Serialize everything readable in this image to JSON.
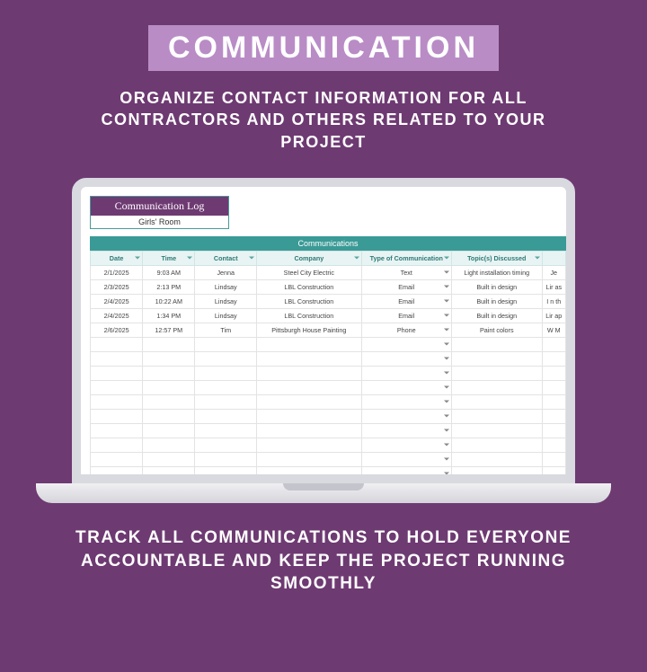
{
  "colors": {
    "page_bg": "#6e3a72",
    "title_bg": "#b98cc6",
    "title_fg": "#ffffff",
    "accent_teal": "#3a9a96",
    "header_cell_bg": "#e8f4f3",
    "header_cell_fg": "#2c7a77",
    "grid_border": "#e3e3e3",
    "log_title_bg": "#6e3a72"
  },
  "hero": {
    "title": "COMMUNICATION",
    "subtitle": "ORGANIZE CONTACT INFORMATION FOR ALL CONTRACTORS AND OTHERS RELATED TO YOUR PROJECT"
  },
  "footer": {
    "text": "TRACK ALL COMMUNICATIONS TO HOLD EVERYONE ACCOUNTABLE AND KEEP THE PROJECT RUNNING SMOOTHLY"
  },
  "sheet": {
    "title": "Communication Log",
    "subtitle": "Girls' Room",
    "section_banner": "Communications",
    "columns": [
      "Date",
      "Time",
      "Contact",
      "Company",
      "Type of Communication",
      "Topic(s) Discussed",
      ""
    ],
    "rows": [
      {
        "date": "2/1/2025",
        "time": "9:03 AM",
        "contact": "Jenna",
        "company": "Steel City Electric",
        "type": "Text",
        "topic": "Light installation timing",
        "note": "Je"
      },
      {
        "date": "2/3/2025",
        "time": "2:13 PM",
        "contact": "Lindsay",
        "company": "LBL Construction",
        "type": "Email",
        "topic": "Built in design",
        "note": "Lir as"
      },
      {
        "date": "2/4/2025",
        "time": "10:22 AM",
        "contact": "Lindsay",
        "company": "LBL Construction",
        "type": "Email",
        "topic": "Built in design",
        "note": "I n th"
      },
      {
        "date": "2/4/2025",
        "time": "1:34 PM",
        "contact": "Lindsay",
        "company": "LBL Construction",
        "type": "Email",
        "topic": "Built in design",
        "note": "Lir ap"
      },
      {
        "date": "2/6/2025",
        "time": "12:57 PM",
        "contact": "Tim",
        "company": "Pittsburgh House Painting",
        "type": "Phone",
        "topic": "Paint colors",
        "note": "W M"
      }
    ],
    "blank_rows": 11
  }
}
